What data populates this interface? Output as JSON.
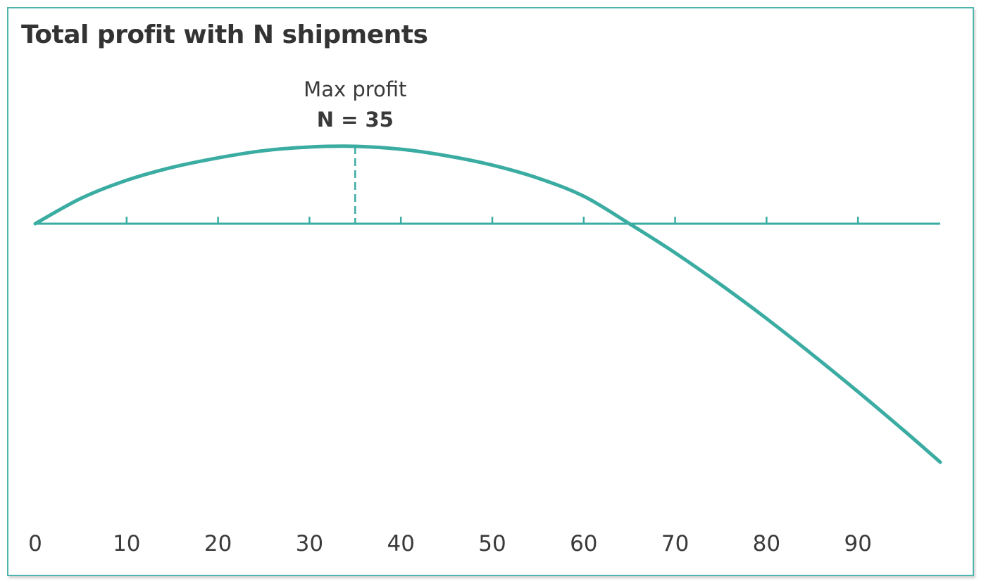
{
  "chart_data": {
    "type": "line",
    "title": "Total profit with N shipments",
    "xlabel": "",
    "ylabel": "",
    "xlim": [
      0,
      99
    ],
    "x_ticks": [
      0,
      10,
      20,
      30,
      40,
      50,
      60,
      70,
      80,
      90
    ],
    "grid": false,
    "legend": "none",
    "series": [
      {
        "x": [
          0,
          5,
          10,
          15,
          20,
          25,
          30,
          35,
          40,
          45,
          50,
          55,
          60,
          65,
          70,
          75,
          80,
          85,
          90,
          95,
          99
        ],
        "y": [
          0,
          35,
          60,
          78,
          91,
          101,
          106,
          107,
          103,
          94,
          81,
          63,
          38,
          0,
          -43,
          -90,
          -140,
          -193,
          -248,
          -305,
          -352
        ]
      }
    ],
    "annotation": {
      "label": "Max profit",
      "value_text": "N = 35",
      "x": 35
    },
    "colors": {
      "line": "#3aaca2",
      "axis": "#3aaca2",
      "border": "#4fb6ad",
      "text": "#3a3a3a"
    }
  }
}
